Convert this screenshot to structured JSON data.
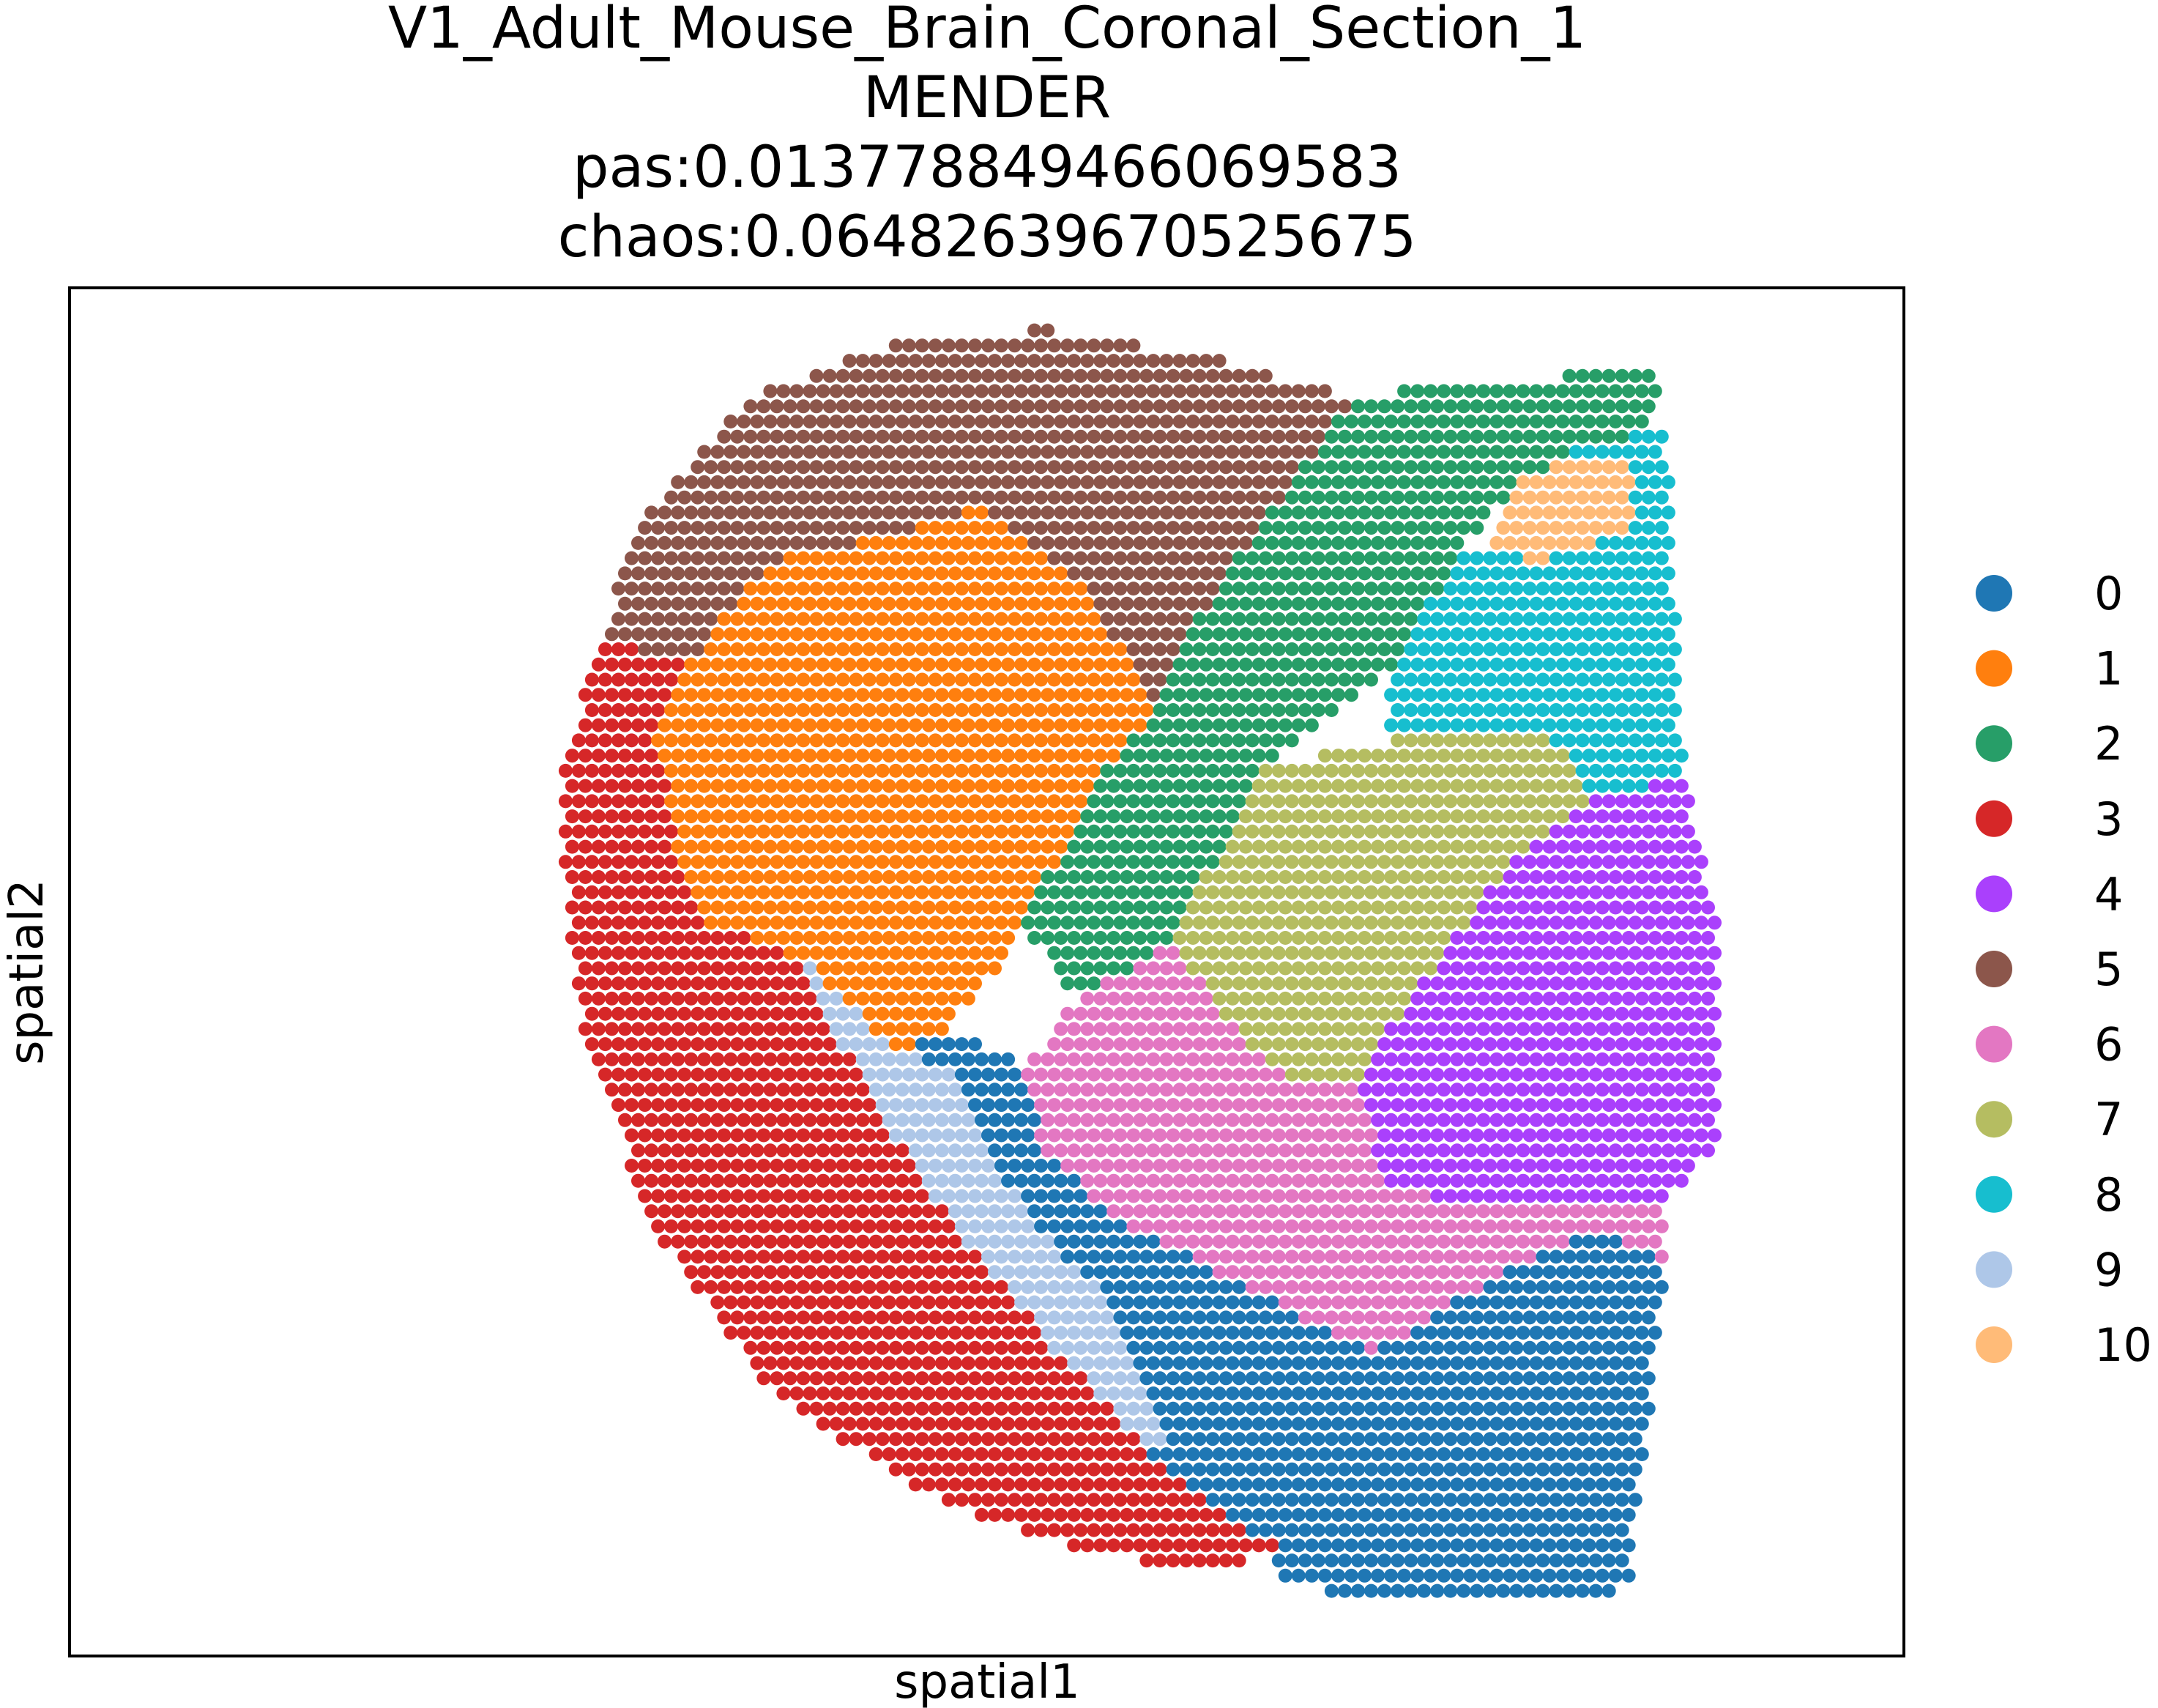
{
  "chart_data": {
    "type": "scatter",
    "title_lines": [
      "V1_Adult_Mouse_Brain_Coronal_Section_1",
      "MENDER",
      "pas:0.013778849466069583",
      "chaos:0.06482639670525675"
    ],
    "xlabel": "spatial1",
    "ylabel": "spatial2",
    "grid": false,
    "ticks": false,
    "legend_position": "right",
    "clusters": [
      {
        "label": "0",
        "color": "#1f77b4"
      },
      {
        "label": "1",
        "color": "#ff7f0e"
      },
      {
        "label": "2",
        "color": "#279e68"
      },
      {
        "label": "3",
        "color": "#d62728"
      },
      {
        "label": "4",
        "color": "#aa40fc"
      },
      {
        "label": "5",
        "color": "#8c564b"
      },
      {
        "label": "6",
        "color": "#e377c2"
      },
      {
        "label": "7",
        "color": "#b5bd61"
      },
      {
        "label": "8",
        "color": "#17becf"
      },
      {
        "label": "9",
        "color": "#aec7e8"
      },
      {
        "label": "10",
        "color": "#ffbb78"
      }
    ],
    "regions": [
      {
        "cluster": "5",
        "polygon": [
          [
            0.29,
            0.26
          ],
          [
            0.31,
            0.17
          ],
          [
            0.37,
            0.08
          ],
          [
            0.45,
            0.04
          ],
          [
            0.53,
            0.03
          ],
          [
            0.62,
            0.05
          ],
          [
            0.7,
            0.08
          ],
          [
            0.62,
            0.23
          ],
          [
            0.59,
            0.31
          ],
          [
            0.56,
            0.23
          ],
          [
            0.5,
            0.16
          ],
          [
            0.45,
            0.18
          ],
          [
            0.38,
            0.2
          ],
          [
            0.34,
            0.27
          ]
        ]
      },
      {
        "cluster": "1",
        "polygon": [
          [
            0.34,
            0.27
          ],
          [
            0.38,
            0.2
          ],
          [
            0.45,
            0.18
          ],
          [
            0.5,
            0.16
          ],
          [
            0.56,
            0.23
          ],
          [
            0.59,
            0.31
          ],
          [
            0.55,
            0.38
          ],
          [
            0.52,
            0.47
          ],
          [
            0.48,
            0.54
          ],
          [
            0.45,
            0.56
          ],
          [
            0.4,
            0.49
          ],
          [
            0.34,
            0.46
          ],
          [
            0.33,
            0.4
          ],
          [
            0.32,
            0.33
          ]
        ]
      },
      {
        "cluster": "3",
        "polygon": [
          [
            0.29,
            0.26
          ],
          [
            0.34,
            0.27
          ],
          [
            0.32,
            0.33
          ],
          [
            0.33,
            0.4
          ],
          [
            0.38,
            0.45
          ],
          [
            0.4,
            0.49
          ],
          [
            0.42,
            0.55
          ],
          [
            0.45,
            0.62
          ],
          [
            0.49,
            0.7
          ],
          [
            0.54,
            0.78
          ],
          [
            0.58,
            0.84
          ],
          [
            0.62,
            0.89
          ],
          [
            0.66,
            0.92
          ],
          [
            0.63,
            0.94
          ],
          [
            0.58,
            0.93
          ],
          [
            0.52,
            0.91
          ],
          [
            0.45,
            0.87
          ],
          [
            0.38,
            0.8
          ],
          [
            0.32,
            0.69
          ],
          [
            0.28,
            0.55
          ],
          [
            0.27,
            0.43
          ],
          [
            0.27,
            0.34
          ]
        ]
      },
      {
        "cluster": "9",
        "polygon": [
          [
            0.4,
            0.49
          ],
          [
            0.44,
            0.5
          ],
          [
            0.45,
            0.56
          ],
          [
            0.48,
            0.57
          ],
          [
            0.5,
            0.63
          ],
          [
            0.53,
            0.69
          ],
          [
            0.56,
            0.73
          ],
          [
            0.58,
            0.78
          ],
          [
            0.6,
            0.84
          ],
          [
            0.58,
            0.85
          ],
          [
            0.54,
            0.8
          ],
          [
            0.48,
            0.72
          ],
          [
            0.44,
            0.63
          ],
          [
            0.42,
            0.56
          ]
        ]
      },
      {
        "cluster": "0",
        "polygon": [
          [
            0.45,
            0.56
          ],
          [
            0.48,
            0.54
          ],
          [
            0.52,
            0.57
          ],
          [
            0.53,
            0.63
          ],
          [
            0.57,
            0.68
          ],
          [
            0.64,
            0.73
          ],
          [
            0.71,
            0.78
          ],
          [
            0.78,
            0.72
          ],
          [
            0.83,
            0.69
          ],
          [
            0.87,
            0.71
          ],
          [
            0.86,
            0.83
          ],
          [
            0.85,
            0.95
          ],
          [
            0.82,
            0.96
          ],
          [
            0.7,
            0.96
          ],
          [
            0.66,
            0.94
          ],
          [
            0.62,
            0.89
          ],
          [
            0.58,
            0.84
          ],
          [
            0.56,
            0.78
          ],
          [
            0.53,
            0.72
          ],
          [
            0.5,
            0.65
          ],
          [
            0.47,
            0.59
          ]
        ]
      },
      {
        "cluster": "2",
        "polygon": [
          [
            0.7,
            0.08
          ],
          [
            0.76,
            0.07
          ],
          [
            0.86,
            0.06
          ],
          [
            0.87,
            0.08
          ],
          [
            0.85,
            0.11
          ],
          [
            0.82,
            0.12
          ],
          [
            0.79,
            0.14
          ],
          [
            0.76,
            0.19
          ],
          [
            0.72,
            0.28
          ],
          [
            0.65,
            0.35
          ],
          [
            0.6,
            0.48
          ],
          [
            0.55,
            0.52
          ],
          [
            0.52,
            0.47
          ],
          [
            0.55,
            0.38
          ],
          [
            0.59,
            0.31
          ],
          [
            0.62,
            0.23
          ]
        ]
      },
      {
        "cluster": "10",
        "polygon": [
          [
            0.79,
            0.14
          ],
          [
            0.82,
            0.12
          ],
          [
            0.85,
            0.13
          ],
          [
            0.85,
            0.18
          ],
          [
            0.8,
            0.2
          ],
          [
            0.77,
            0.19
          ]
        ]
      },
      {
        "cluster": "8",
        "polygon": [
          [
            0.82,
            0.12
          ],
          [
            0.87,
            0.1
          ],
          [
            0.88,
            0.36
          ],
          [
            0.83,
            0.37
          ],
          [
            0.81,
            0.33
          ],
          [
            0.72,
            0.33
          ],
          [
            0.72,
            0.28
          ],
          [
            0.76,
            0.19
          ],
          [
            0.8,
            0.2
          ],
          [
            0.85,
            0.18
          ],
          [
            0.85,
            0.13
          ]
        ]
      },
      {
        "cluster": "7",
        "polygon": [
          [
            0.65,
            0.35
          ],
          [
            0.72,
            0.33
          ],
          [
            0.81,
            0.33
          ],
          [
            0.83,
            0.37
          ],
          [
            0.78,
            0.43
          ],
          [
            0.73,
            0.52
          ],
          [
            0.7,
            0.58
          ],
          [
            0.67,
            0.58
          ],
          [
            0.64,
            0.55
          ],
          [
            0.6,
            0.48
          ]
        ]
      },
      {
        "cluster": "4",
        "polygon": [
          [
            0.83,
            0.37
          ],
          [
            0.88,
            0.36
          ],
          [
            0.9,
            0.47
          ],
          [
            0.9,
            0.62
          ],
          [
            0.87,
            0.67
          ],
          [
            0.78,
            0.67
          ],
          [
            0.72,
            0.66
          ],
          [
            0.7,
            0.58
          ],
          [
            0.73,
            0.52
          ],
          [
            0.78,
            0.43
          ]
        ]
      },
      {
        "cluster": "6",
        "polygon": [
          [
            0.55,
            0.52
          ],
          [
            0.6,
            0.48
          ],
          [
            0.64,
            0.55
          ],
          [
            0.67,
            0.58
          ],
          [
            0.7,
            0.58
          ],
          [
            0.72,
            0.66
          ],
          [
            0.78,
            0.67
          ],
          [
            0.87,
            0.67
          ],
          [
            0.87,
            0.71
          ],
          [
            0.83,
            0.69
          ],
          [
            0.78,
            0.72
          ],
          [
            0.71,
            0.78
          ],
          [
            0.64,
            0.73
          ],
          [
            0.57,
            0.68
          ],
          [
            0.53,
            0.63
          ],
          [
            0.52,
            0.57
          ]
        ]
      }
    ]
  }
}
